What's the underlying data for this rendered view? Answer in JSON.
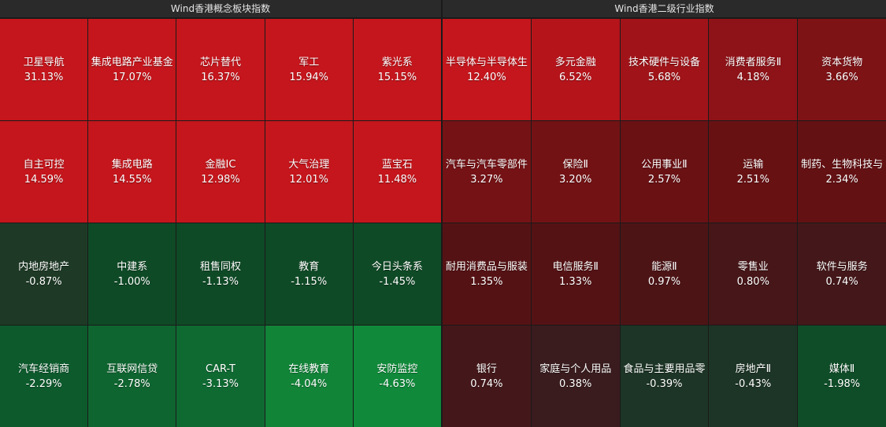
{
  "panels": [
    {
      "title": "Wind香港概念板块指数",
      "tiles": [
        {
          "name": "卫星导航",
          "pct": "31.13%",
          "color": "#c4161c"
        },
        {
          "name": "集成电路产业基金",
          "pct": "17.07%",
          "color": "#c4161c"
        },
        {
          "name": "芯片替代",
          "pct": "16.37%",
          "color": "#c4161c"
        },
        {
          "name": "军工",
          "pct": "15.94%",
          "color": "#c4161c"
        },
        {
          "name": "紫光系",
          "pct": "15.15%",
          "color": "#c4161c"
        },
        {
          "name": "自主可控",
          "pct": "14.59%",
          "color": "#c4161c"
        },
        {
          "name": "集成电路",
          "pct": "14.55%",
          "color": "#c4161c"
        },
        {
          "name": "金融IC",
          "pct": "12.98%",
          "color": "#c4161c"
        },
        {
          "name": "大气治理",
          "pct": "12.01%",
          "color": "#c4161c"
        },
        {
          "name": "蓝宝石",
          "pct": "11.48%",
          "color": "#c4161c"
        },
        {
          "name": "内地房地产",
          "pct": "-0.87%",
          "color": "#1e3a26"
        },
        {
          "name": "中建系",
          "pct": "-1.00%",
          "color": "#0f4a26"
        },
        {
          "name": "租售同权",
          "pct": "-1.13%",
          "color": "#0f4a26"
        },
        {
          "name": "教育",
          "pct": "-1.15%",
          "color": "#0f4a26"
        },
        {
          "name": "今日头条系",
          "pct": "-1.45%",
          "color": "#0f4a26"
        },
        {
          "name": "汽车经销商",
          "pct": "-2.29%",
          "color": "#0d5a2d"
        },
        {
          "name": "互联网信贷",
          "pct": "-2.78%",
          "color": "#0f6530"
        },
        {
          "name": "CAR-T",
          "pct": "-3.13%",
          "color": "#0f6a32"
        },
        {
          "name": "在线教育",
          "pct": "-4.04%",
          "color": "#128438"
        },
        {
          "name": "安防监控",
          "pct": "-4.63%",
          "color": "#108a3a"
        }
      ]
    },
    {
      "title": "Wind香港二级行业指数",
      "tiles": [
        {
          "name": "半导体与半导体生",
          "pct": "12.40%",
          "color": "#c4161c"
        },
        {
          "name": "多元金融",
          "pct": "6.52%",
          "color": "#b5141b"
        },
        {
          "name": "技术硬件与设备",
          "pct": "5.68%",
          "color": "#a01419"
        },
        {
          "name": "消费者服务Ⅱ",
          "pct": "4.18%",
          "color": "#8e1318"
        },
        {
          "name": "资本货物",
          "pct": "3.66%",
          "color": "#7e1316"
        },
        {
          "name": "汽车与汽车零部件",
          "pct": "3.27%",
          "color": "#751215"
        },
        {
          "name": "保险Ⅱ",
          "pct": "3.20%",
          "color": "#731214"
        },
        {
          "name": "公用事业Ⅱ",
          "pct": "2.57%",
          "color": "#6a1114"
        },
        {
          "name": "运输",
          "pct": "2.51%",
          "color": "#681113"
        },
        {
          "name": "制药、生物科技与",
          "pct": "2.34%",
          "color": "#641113"
        },
        {
          "name": "耐用消费品与服装",
          "pct": "1.35%",
          "color": "#551214"
        },
        {
          "name": "电信服务Ⅱ",
          "pct": "1.33%",
          "color": "#541214"
        },
        {
          "name": "能源Ⅱ",
          "pct": "0.97%",
          "color": "#4d1416"
        },
        {
          "name": "零售业",
          "pct": "0.80%",
          "color": "#461618"
        },
        {
          "name": "软件与服务",
          "pct": "0.74%",
          "color": "#44181a"
        },
        {
          "name": "银行",
          "pct": "0.74%",
          "color": "#44181a"
        },
        {
          "name": "家庭与个人用品",
          "pct": "0.38%",
          "color": "#3a1c1e"
        },
        {
          "name": "食品与主要用品零",
          "pct": "-0.39%",
          "color": "#1d3526"
        },
        {
          "name": "房地产Ⅱ",
          "pct": "-0.43%",
          "color": "#1d3526"
        },
        {
          "name": "媒体Ⅱ",
          "pct": "-1.98%",
          "color": "#0f4d28"
        }
      ]
    }
  ]
}
